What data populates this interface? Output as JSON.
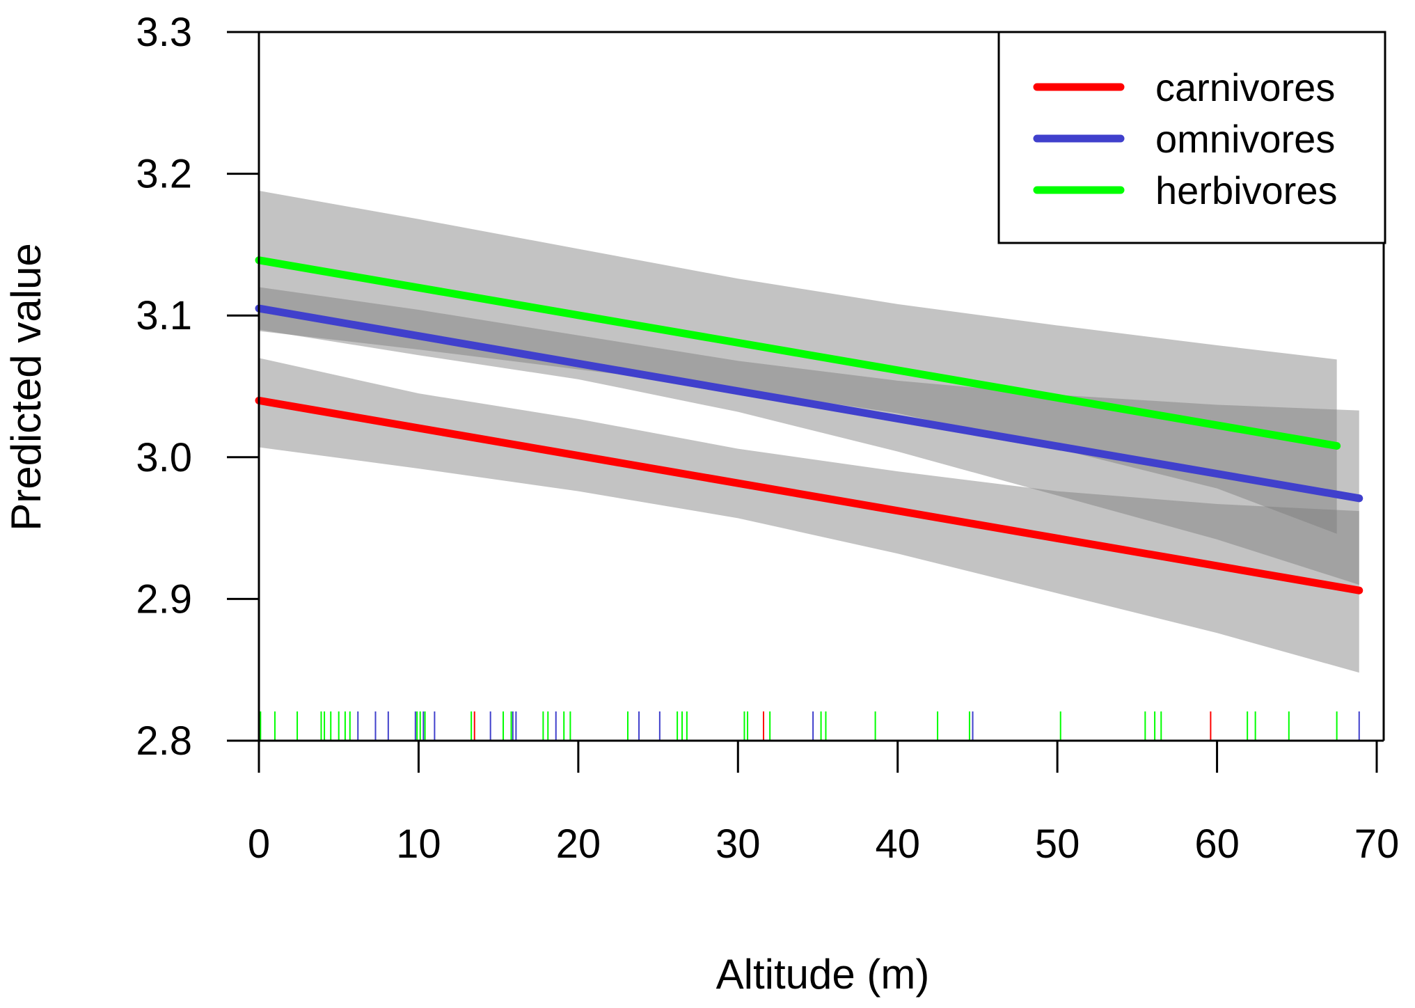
{
  "chart_data": {
    "type": "line",
    "title": "",
    "xlabel": "Altitude (m)",
    "ylabel": "Predicted value",
    "xlim": [
      0,
      70
    ],
    "ylim": [
      2.8,
      3.3
    ],
    "xticks": [
      0,
      10,
      20,
      30,
      40,
      50,
      60,
      70
    ],
    "yticks": [
      2.8,
      2.9,
      3.0,
      3.1,
      3.2,
      3.3
    ],
    "grid": false,
    "legend_position": "top-right",
    "series": [
      {
        "name": "carnivores",
        "color": "#ff0000",
        "x": [
          0,
          68.9
        ],
        "y": [
          3.04,
          2.906
        ],
        "ci_lower": [
          [
            0,
            3.007
          ],
          [
            10,
            2.992
          ],
          [
            20,
            2.976
          ],
          [
            30,
            2.957
          ],
          [
            40,
            2.932
          ],
          [
            50,
            2.904
          ],
          [
            60,
            2.876
          ],
          [
            68.9,
            2.848
          ]
        ],
        "ci_upper": [
          [
            0,
            3.07
          ],
          [
            10,
            3.045
          ],
          [
            20,
            3.027
          ],
          [
            30,
            3.006
          ],
          [
            40,
            2.99
          ],
          [
            50,
            2.976
          ],
          [
            60,
            2.967
          ],
          [
            68.9,
            2.962
          ]
        ],
        "rug": [
          13.5,
          31.6,
          59.6
        ]
      },
      {
        "name": "omnivores",
        "color": "#4040cc",
        "x": [
          0,
          68.9
        ],
        "y": [
          3.105,
          2.971
        ],
        "ci_lower": [
          [
            0,
            3.09
          ],
          [
            10,
            3.072
          ],
          [
            20,
            3.055
          ],
          [
            30,
            3.032
          ],
          [
            40,
            3.004
          ],
          [
            50,
            2.973
          ],
          [
            60,
            2.942
          ],
          [
            68.9,
            2.91
          ]
        ],
        "ci_upper": [
          [
            0,
            3.12
          ],
          [
            10,
            3.104
          ],
          [
            20,
            3.086
          ],
          [
            30,
            3.068
          ],
          [
            40,
            3.054
          ],
          [
            50,
            3.044
          ],
          [
            60,
            3.037
          ],
          [
            68.9,
            3.033
          ]
        ],
        "rug": [
          6.2,
          7.3,
          8.1,
          9.8,
          10.3,
          11.0,
          14.5,
          15.9,
          16.1,
          18.6,
          23.8,
          25.1,
          34.7,
          44.7,
          68.9
        ]
      },
      {
        "name": "herbivores",
        "color": "#00ff00",
        "x": [
          0,
          67.5
        ],
        "y": [
          3.139,
          3.008
        ],
        "ci_lower": [
          [
            0,
            3.089
          ],
          [
            10,
            3.076
          ],
          [
            20,
            3.062
          ],
          [
            30,
            3.048
          ],
          [
            40,
            3.031
          ],
          [
            50,
            3.006
          ],
          [
            60,
            2.978
          ],
          [
            67.5,
            2.946
          ]
        ],
        "ci_upper": [
          [
            0,
            3.188
          ],
          [
            10,
            3.168
          ],
          [
            20,
            3.147
          ],
          [
            30,
            3.126
          ],
          [
            40,
            3.108
          ],
          [
            50,
            3.093
          ],
          [
            60,
            3.079
          ],
          [
            67.5,
            3.069
          ]
        ],
        "rug": [
          0.1,
          1.0,
          2.4,
          3.9,
          4.1,
          4.5,
          5.0,
          5.4,
          5.7,
          9.9,
          10.1,
          10.4,
          13.3,
          15.3,
          15.8,
          17.8,
          18.1,
          19.1,
          19.5,
          23.1,
          26.2,
          26.5,
          26.8,
          30.4,
          30.6,
          32.0,
          35.2,
          35.5,
          38.6,
          42.5,
          44.5,
          50.2,
          55.5,
          56.1,
          56.5,
          61.9,
          62.4,
          64.5,
          67.5
        ]
      }
    ]
  }
}
